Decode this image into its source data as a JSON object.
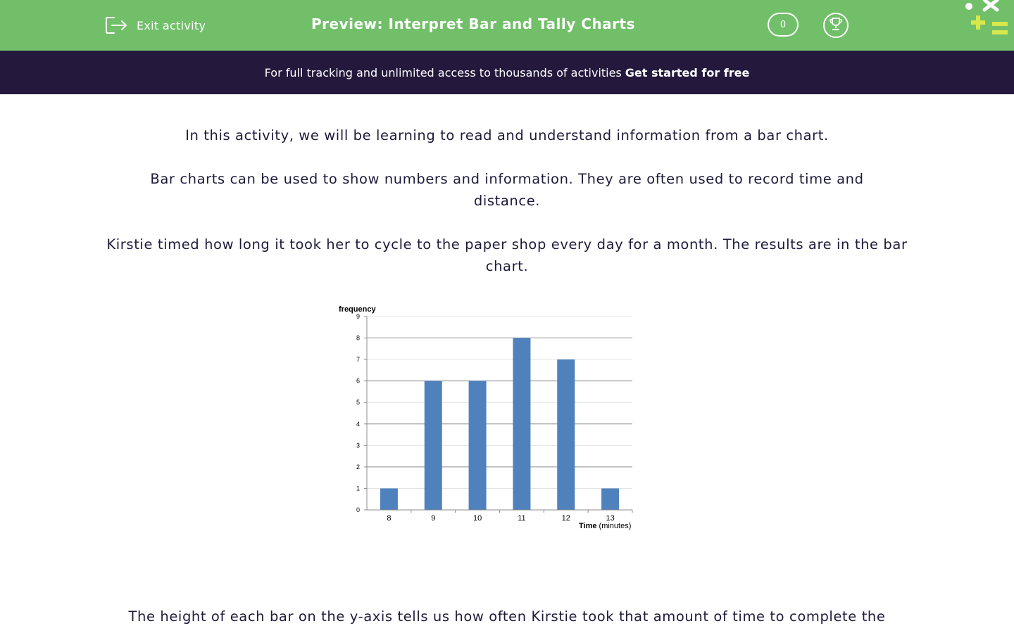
{
  "header": {
    "exit_label": "Exit activity",
    "title": "Preview: Interpret Bar and Tally Charts",
    "score": "0",
    "exit_icon": "exit-door-icon",
    "trophy_icon": "trophy-icon",
    "logo_icon": "math-symbols-logo",
    "color": "#72bf6a"
  },
  "banner": {
    "text": "For full tracking and unlimited access to thousands of activities",
    "cta": "Get started for free",
    "color": "#24183c"
  },
  "content": {
    "p1": "In this activity, we will be learning to read and understand information from a bar chart.",
    "p2": "Bar charts can be used to show numbers and information. They are often used to record time and distance.",
    "p3": "Kirstie timed how long it took her to cycle to the paper shop every day for a month. The results are in the bar chart.",
    "p4": "The height of each bar on the y-axis tells us how often Kirstie took that amount of time to complete the"
  },
  "chart_data": {
    "type": "bar",
    "categories": [
      "8",
      "9",
      "10",
      "11",
      "12",
      "13"
    ],
    "values": [
      1,
      6,
      6,
      8,
      7,
      1
    ],
    "ylabel": "frequency",
    "xlabel_bold": "Time",
    "xlabel_rest": "(minutes)",
    "ylim": [
      0,
      9
    ],
    "yticks": [
      "0",
      "1",
      "2",
      "3",
      "4",
      "5",
      "6",
      "7",
      "8",
      "9"
    ],
    "grid": true,
    "bar_color": "#4f81bd"
  }
}
